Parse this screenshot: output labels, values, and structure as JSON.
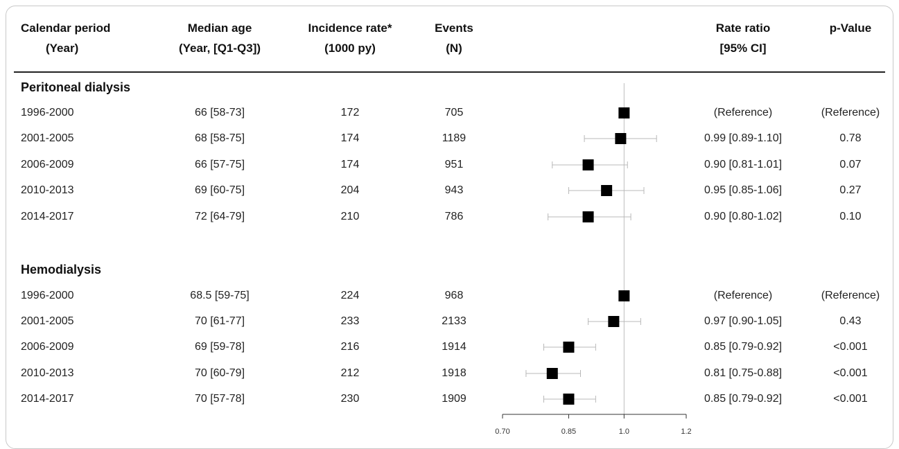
{
  "header": {
    "period": [
      "Calendar period",
      "(Year)"
    ],
    "age": [
      "Median age",
      "(Year, [Q1-Q3])"
    ],
    "incidence": [
      "Incidence rate*",
      "(1000 py)"
    ],
    "events": [
      "Events",
      "(N)"
    ],
    "ratio": [
      "Rate ratio",
      "[95% CI]"
    ],
    "pvalue": [
      "p-Value"
    ]
  },
  "sections": [
    {
      "title": "Peritoneal dialysis",
      "rows": [
        {
          "period": "1996-2000",
          "age": "66 [58-73]",
          "incidence": "172",
          "events": "705",
          "ratio_text": "(Reference)",
          "pvalue": "(Reference)"
        },
        {
          "period": "2001-2005",
          "age": "68 [58-75]",
          "incidence": "174",
          "events": "1189",
          "ratio_text": "0.99 [0.89-1.10]",
          "pvalue": "0.78"
        },
        {
          "period": "2006-2009",
          "age": "66 [57-75]",
          "incidence": "174",
          "events": "951",
          "ratio_text": "0.90 [0.81-1.01]",
          "pvalue": "0.07"
        },
        {
          "period": "2010-2013",
          "age": "69 [60-75]",
          "incidence": "204",
          "events": "943",
          "ratio_text": "0.95 [0.85-1.06]",
          "pvalue": "0.27"
        },
        {
          "period": "2014-2017",
          "age": "72 [64-79]",
          "incidence": "210",
          "events": "786",
          "ratio_text": "0.90 [0.80-1.02]",
          "pvalue": "0.10"
        }
      ]
    },
    {
      "title": "Hemodialysis",
      "rows": [
        {
          "period": "1996-2000",
          "age": "68.5 [59-75]",
          "incidence": "224",
          "events": "968",
          "ratio_text": "(Reference)",
          "pvalue": "(Reference)"
        },
        {
          "period": "2001-2005",
          "age": "70 [61-77]",
          "incidence": "233",
          "events": "2133",
          "ratio_text": "0.97 [0.90-1.05]",
          "pvalue": "0.43"
        },
        {
          "period": "2006-2009",
          "age": "69 [59-78]",
          "incidence": "216",
          "events": "1914",
          "ratio_text": "0.85 [0.79-0.92]",
          "pvalue": "<0.001"
        },
        {
          "period": "2010-2013",
          "age": "70 [60-79]",
          "incidence": "212",
          "events": "1918",
          "ratio_text": "0.81 [0.75-0.88]",
          "pvalue": "<0.001"
        },
        {
          "period": "2014-2017",
          "age": "70 [57-78]",
          "incidence": "230",
          "events": "1909",
          "ratio_text": "0.85 [0.79-0.92]",
          "pvalue": "<0.001"
        }
      ]
    }
  ],
  "chart_data": {
    "type": "scatter",
    "xscale": "log",
    "xlim": [
      0.7,
      1.2
    ],
    "xticks": [
      "0.70",
      "0.85",
      "1.0",
      "1.2"
    ],
    "reference_line": 1.0,
    "xlabel": "Rate ratio",
    "series": [
      {
        "name": "Peritoneal dialysis",
        "categories": [
          "1996-2000",
          "2001-2005",
          "2006-2009",
          "2010-2013",
          "2014-2017"
        ],
        "estimate": [
          1.0,
          0.99,
          0.9,
          0.95,
          0.9
        ],
        "lower": [
          null,
          0.89,
          0.81,
          0.85,
          0.8
        ],
        "upper": [
          null,
          1.1,
          1.01,
          1.06,
          1.02
        ]
      },
      {
        "name": "Hemodialysis",
        "categories": [
          "1996-2000",
          "2001-2005",
          "2006-2009",
          "2010-2013",
          "2014-2017"
        ],
        "estimate": [
          1.0,
          0.97,
          0.85,
          0.81,
          0.85
        ],
        "lower": [
          null,
          0.9,
          0.79,
          0.75,
          0.79
        ],
        "upper": [
          null,
          1.05,
          0.92,
          0.88,
          0.92
        ]
      }
    ]
  }
}
